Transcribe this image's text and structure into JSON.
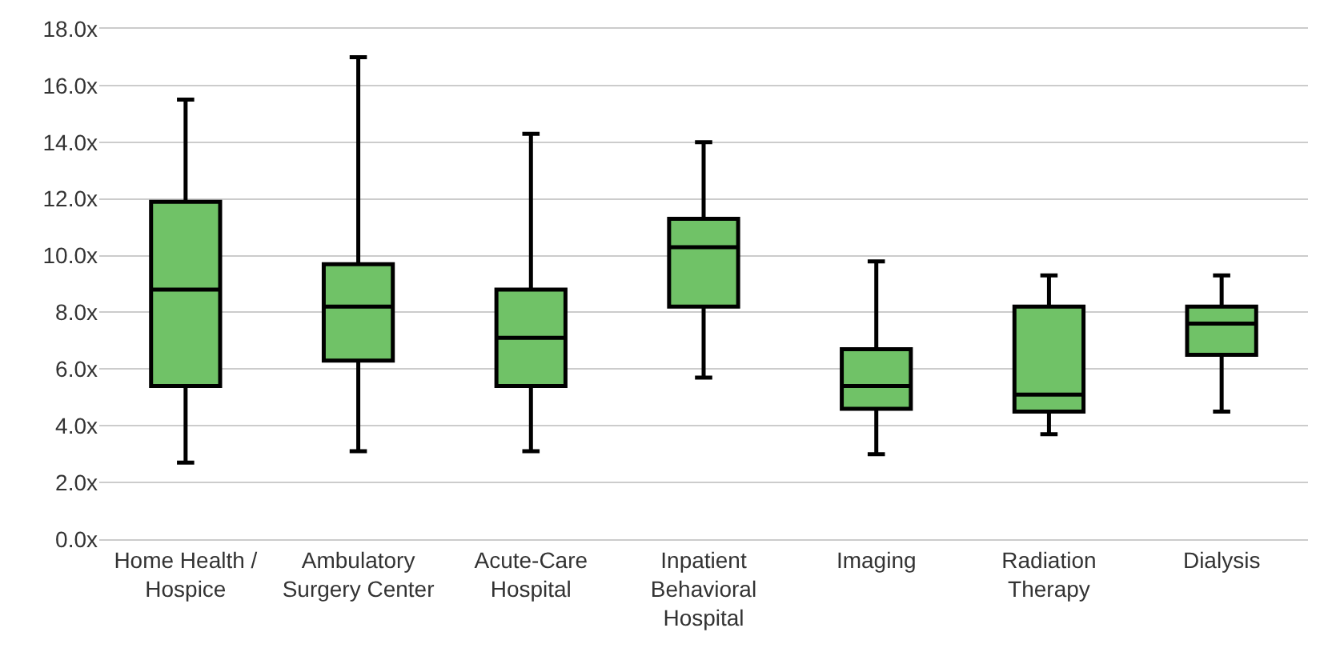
{
  "chart_data": {
    "type": "box",
    "categories": [
      "Home Health / Hospice",
      "Ambulatory Surgery Center",
      "Acute-Care Hospital",
      "Inpatient Behavioral Hospital",
      "Imaging",
      "Radiation Therapy",
      "Dialysis"
    ],
    "boxes": [
      {
        "low": 2.7,
        "q1": 5.4,
        "median": 8.8,
        "q3": 11.9,
        "high": 15.5
      },
      {
        "low": 3.1,
        "q1": 6.3,
        "median": 8.2,
        "q3": 9.7,
        "high": 17.0
      },
      {
        "low": 3.1,
        "q1": 5.4,
        "median": 7.1,
        "q3": 8.8,
        "high": 14.3
      },
      {
        "low": 5.7,
        "q1": 8.2,
        "median": 10.3,
        "q3": 11.3,
        "high": 14.0
      },
      {
        "low": 3.0,
        "q1": 4.6,
        "median": 5.4,
        "q3": 6.7,
        "high": 9.8
      },
      {
        "low": 3.7,
        "q1": 4.5,
        "median": 5.1,
        "q3": 8.2,
        "high": 9.3
      },
      {
        "low": 4.5,
        "q1": 6.5,
        "median": 7.6,
        "q3": 8.2,
        "high": 9.3
      }
    ],
    "color": "#70c267",
    "ylim": [
      0,
      18
    ],
    "yticks": [
      {
        "value": 0,
        "label": "0.0x"
      },
      {
        "value": 2,
        "label": "2.0x"
      },
      {
        "value": 4,
        "label": "4.0x"
      },
      {
        "value": 6,
        "label": "6.0x"
      },
      {
        "value": 8,
        "label": "8.0x"
      },
      {
        "value": 10,
        "label": "10.0x"
      },
      {
        "value": 12,
        "label": "12.0x"
      },
      {
        "value": 14,
        "label": "14.0x"
      },
      {
        "value": 16,
        "label": "16.0x"
      },
      {
        "value": 18,
        "label": "18.0x"
      }
    ],
    "grid": "y"
  }
}
